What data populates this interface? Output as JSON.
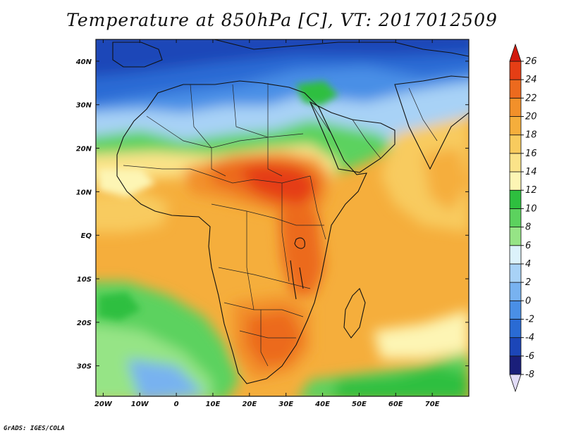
{
  "title": "Temperature at 850hPa [C], VT: 2017012509",
  "footer": "GrADS: IGES/COLA",
  "map": {
    "lon_range": [
      -22,
      80
    ],
    "lat_range": [
      -37,
      45
    ],
    "lon_ticks": [
      {
        "value": -20,
        "label": "20W"
      },
      {
        "value": -10,
        "label": "10W"
      },
      {
        "value": 0,
        "label": "0"
      },
      {
        "value": 10,
        "label": "10E"
      },
      {
        "value": 20,
        "label": "20E"
      },
      {
        "value": 30,
        "label": "30E"
      },
      {
        "value": 40,
        "label": "40E"
      },
      {
        "value": 50,
        "label": "50E"
      },
      {
        "value": 60,
        "label": "60E"
      },
      {
        "value": 70,
        "label": "70E"
      }
    ],
    "lat_ticks": [
      {
        "value": 40,
        "label": "40N"
      },
      {
        "value": 30,
        "label": "30N"
      },
      {
        "value": 20,
        "label": "20N"
      },
      {
        "value": 10,
        "label": "10N"
      },
      {
        "value": 0,
        "label": "EQ"
      },
      {
        "value": -10,
        "label": "10S"
      },
      {
        "value": -20,
        "label": "20S"
      },
      {
        "value": -30,
        "label": "30S"
      }
    ]
  },
  "colorbar": {
    "labels": [
      "26",
      "24",
      "22",
      "20",
      "18",
      "16",
      "14",
      "12",
      "10",
      "8",
      "6",
      "4",
      "2",
      "0",
      "-2",
      "-4",
      "-6",
      "-8"
    ],
    "colors": [
      "#1a1f7a",
      "#1c46b8",
      "#2a6bd4",
      "#4a8fe6",
      "#78b2f0",
      "#a8d2f6",
      "#dcf2fb",
      "#96e486",
      "#5cd25e",
      "#2ebf3f",
      "#fdf5b4",
      "#fbe389",
      "#f8cb5e",
      "#f5ae3c",
      "#f2902a",
      "#ec6a1e",
      "#e53e15"
    ],
    "under_color": "#e2dcf8",
    "over_color": "#d21a0e"
  },
  "features": {
    "landmasses": [
      "Africa",
      "Arabian Peninsula",
      "Madagascar",
      "Iberia",
      "Indian subcontinent"
    ],
    "lakes": [
      "Lake Victoria",
      "Lake Tanganyika",
      "Lake Malawi"
    ]
  }
}
